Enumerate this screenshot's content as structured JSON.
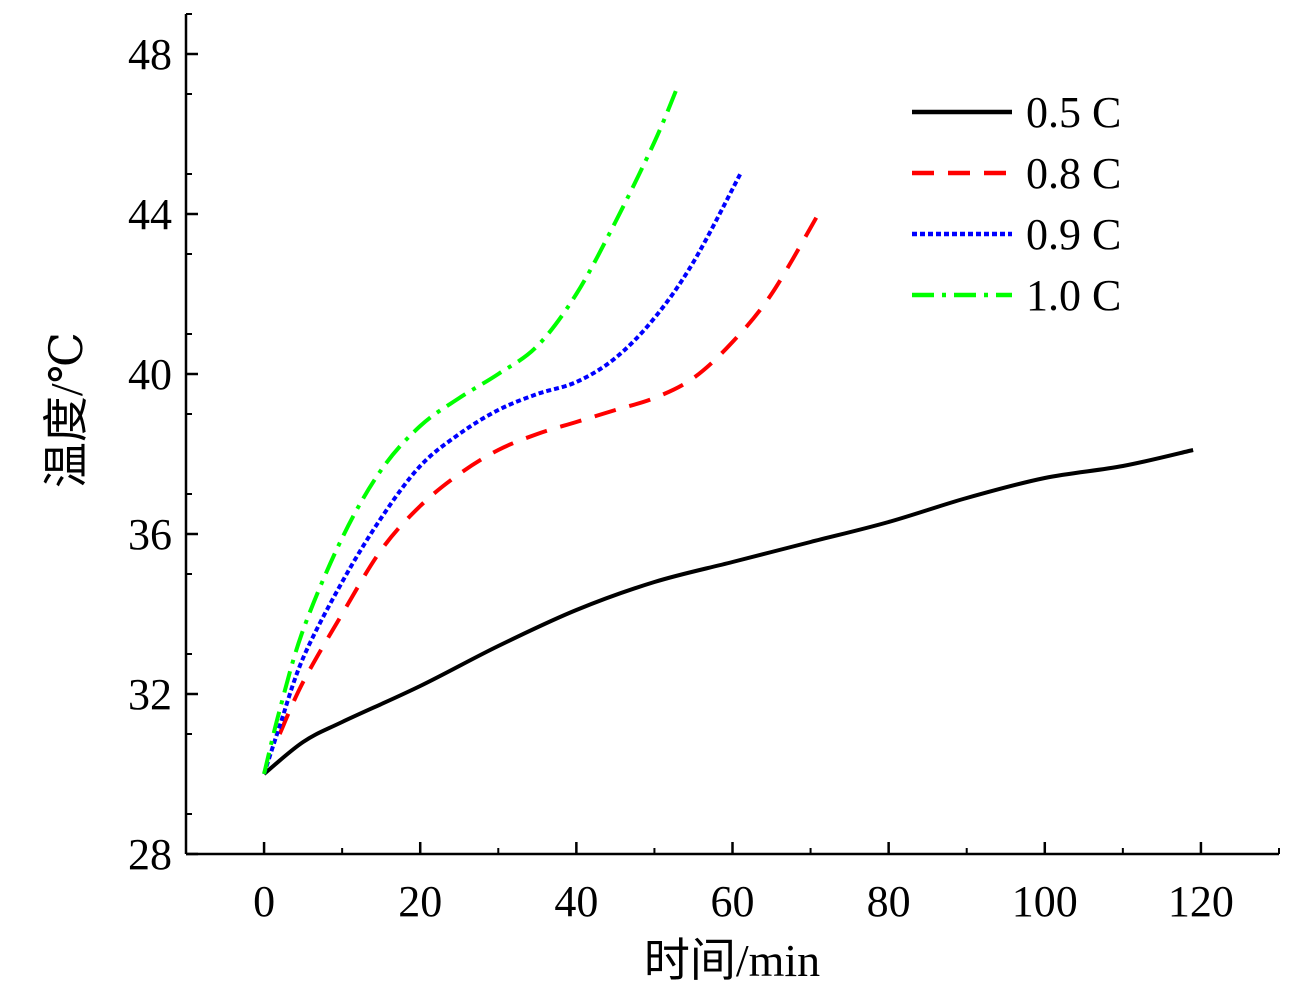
{
  "chart_data": {
    "type": "line",
    "title": "",
    "xlabel": "时间/min",
    "ylabel": "温度/℃",
    "xlim": [
      -10,
      130
    ],
    "ylim": [
      28,
      49
    ],
    "xticks": [
      0,
      20,
      40,
      60,
      80,
      100,
      120
    ],
    "yticks": [
      28,
      32,
      36,
      40,
      44,
      48
    ],
    "x_tick_labels": [
      "0",
      "20",
      "40",
      "60",
      "80",
      "100",
      "120"
    ],
    "y_tick_labels": [
      "28",
      "32",
      "36",
      "40",
      "44",
      "48"
    ],
    "grid": false,
    "legend_position": "top-right",
    "series": [
      {
        "name": "0.5 C",
        "color": "#000000",
        "style": "solid",
        "x": [
          0,
          5,
          10,
          20,
          30,
          40,
          50,
          60,
          70,
          80,
          90,
          100,
          110,
          119
        ],
        "y": [
          30.0,
          30.8,
          31.3,
          32.2,
          33.2,
          34.1,
          34.8,
          35.3,
          35.8,
          36.3,
          36.9,
          37.4,
          37.7,
          38.1
        ]
      },
      {
        "name": "0.8 C",
        "color": "#ff0000",
        "style": "dashed",
        "x": [
          2,
          5,
          10,
          15,
          20,
          25,
          30,
          35,
          40,
          45,
          50,
          55,
          60,
          65,
          71
        ],
        "y": [
          31.0,
          32.3,
          34.0,
          35.6,
          36.7,
          37.5,
          38.1,
          38.5,
          38.8,
          39.1,
          39.4,
          39.9,
          40.8,
          42.0,
          44.0
        ]
      },
      {
        "name": "0.9 C",
        "color": "#0000ff",
        "style": "dotted",
        "x": [
          0,
          2,
          5,
          10,
          15,
          20,
          25,
          30,
          35,
          40,
          45,
          50,
          55,
          61
        ],
        "y": [
          30.0,
          31.2,
          32.9,
          34.8,
          36.4,
          37.7,
          38.5,
          39.1,
          39.5,
          39.8,
          40.4,
          41.4,
          42.8,
          45.0
        ]
      },
      {
        "name": "1.0 C",
        "color": "#00ff00",
        "style": "dashdot",
        "x": [
          0,
          2,
          5,
          10,
          15,
          20,
          25,
          30,
          35,
          40,
          45,
          50,
          53
        ],
        "y": [
          30.0,
          31.6,
          33.6,
          35.9,
          37.6,
          38.7,
          39.4,
          40.0,
          40.7,
          42.0,
          43.8,
          45.8,
          47.2
        ]
      }
    ]
  }
}
